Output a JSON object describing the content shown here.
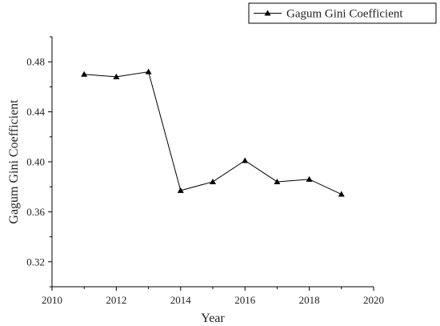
{
  "chart_data": {
    "type": "line",
    "xlabel": "Year",
    "ylabel": "Gagum Gini Coefficient",
    "xlim": [
      2010,
      2020
    ],
    "ylim": [
      0.3,
      0.5
    ],
    "x_ticks": [
      2010,
      2012,
      2014,
      2016,
      2018,
      2020
    ],
    "x_tick_labels": [
      "2010",
      "2012",
      "2014",
      "2016",
      "2018",
      "2020"
    ],
    "y_ticks": [
      0.32,
      0.36,
      0.4,
      0.44,
      0.48
    ],
    "y_tick_labels": [
      "0.32",
      "0.36",
      "0.40",
      "0.44",
      "0.48"
    ],
    "grid": false,
    "legend_position": "top-right",
    "series": [
      {
        "name": "Gagum Gini Coefficient",
        "marker": "triangle",
        "color": "#000000",
        "x": [
          2011,
          2012,
          2013,
          2014,
          2015,
          2016,
          2017,
          2018,
          2019
        ],
        "y": [
          0.47,
          0.468,
          0.472,
          0.377,
          0.384,
          0.401,
          0.384,
          0.386,
          0.374
        ]
      }
    ]
  }
}
